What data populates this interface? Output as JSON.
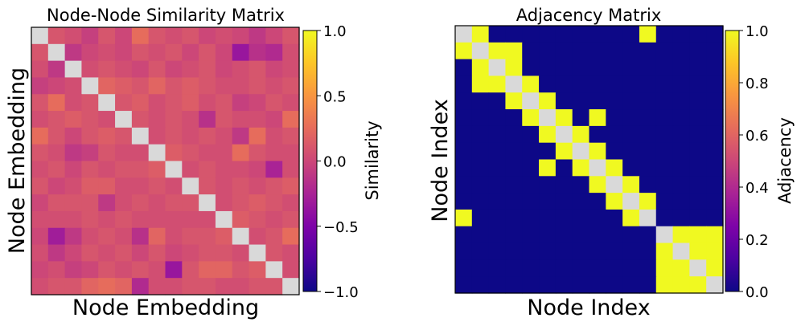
{
  "chart_data": [
    {
      "type": "heatmap",
      "title": "Node-Node Similarity Matrix",
      "xlabel": "Node Embedding",
      "ylabel": "Node Embedding",
      "colormap": "plasma",
      "vmin": -1.0,
      "vmax": 1.0,
      "colorbar_label": "Similarity",
      "colorbar_ticks": [
        -1.0,
        -0.5,
        0.0,
        0.5,
        1.0
      ],
      "colorbar_tick_labels": [
        "−1.0",
        "−0.5",
        "0.0",
        "0.5",
        "1.0"
      ],
      "diagonal_masked": true,
      "mask_color": "#d9d9d9",
      "size": 16,
      "values": [
        [
          null,
          0.1,
          0.05,
          -0.05,
          0.1,
          0.0,
          0.25,
          0.1,
          0.05,
          0.1,
          0.0,
          0.05,
          0.0,
          -0.1,
          0.0,
          0.1
        ],
        [
          0.1,
          null,
          -0.1,
          0.0,
          0.05,
          0.0,
          0.1,
          0.05,
          0.1,
          0.0,
          0.1,
          0.0,
          -0.35,
          -0.15,
          -0.2,
          0.05
        ],
        [
          0.05,
          -0.1,
          null,
          0.05,
          0.1,
          0.05,
          0.0,
          0.1,
          0.0,
          0.05,
          0.1,
          0.0,
          0.05,
          0.1,
          0.0,
          0.05
        ],
        [
          -0.05,
          0.0,
          0.05,
          null,
          0.2,
          0.15,
          0.1,
          0.2,
          0.1,
          0.15,
          0.1,
          0.05,
          0.05,
          0.1,
          0.05,
          0.1
        ],
        [
          0.1,
          0.25,
          0.05,
          0.1,
          null,
          0.1,
          0.15,
          0.05,
          0.1,
          0.15,
          0.05,
          0.1,
          -0.05,
          0.0,
          0.1,
          0.05
        ],
        [
          0.05,
          0.1,
          0.15,
          0.1,
          0.05,
          null,
          0.1,
          0.05,
          0.1,
          0.05,
          -0.15,
          0.1,
          0.05,
          0.05,
          0.0,
          0.25
        ],
        [
          0.25,
          0.1,
          0.0,
          0.1,
          0.15,
          0.1,
          null,
          0.05,
          0.1,
          0.05,
          0.1,
          0.05,
          -0.1,
          0.25,
          0.05,
          0.1
        ],
        [
          0.1,
          0.05,
          -0.1,
          -0.05,
          0.1,
          0.05,
          0.05,
          null,
          0.15,
          0.1,
          0.05,
          0.05,
          0.25,
          0.1,
          0.05,
          0.05
        ],
        [
          0.05,
          0.1,
          0.0,
          0.1,
          0.05,
          0.1,
          0.1,
          0.15,
          null,
          0.05,
          0.1,
          0.05,
          0.05,
          0.0,
          -0.25,
          0.05
        ],
        [
          0.1,
          0.0,
          0.05,
          0.15,
          0.15,
          0.05,
          0.05,
          0.1,
          0.05,
          null,
          0.1,
          0.05,
          0.1,
          0.05,
          0.1,
          0.15
        ],
        [
          0.0,
          0.1,
          0.1,
          0.1,
          -0.1,
          0.05,
          0.1,
          0.05,
          0.1,
          0.1,
          null,
          0.05,
          0.1,
          0.15,
          0.1,
          0.05
        ],
        [
          0.05,
          0.05,
          0.05,
          0.1,
          0.05,
          0.1,
          0.05,
          0.05,
          0.05,
          0.05,
          0.05,
          null,
          0.15,
          0.1,
          0.05,
          0.1
        ],
        [
          0.0,
          -0.3,
          -0.1,
          0.05,
          0.1,
          0.05,
          -0.15,
          0.2,
          0.05,
          0.1,
          0.1,
          0.15,
          null,
          0.05,
          0.1,
          0.25
        ],
        [
          0.05,
          -0.1,
          0.0,
          0.1,
          0.05,
          0.1,
          0.0,
          0.1,
          0.0,
          0.05,
          0.1,
          0.1,
          0.05,
          null,
          0.1,
          0.05
        ],
        [
          0.0,
          0.05,
          -0.05,
          0.0,
          0.1,
          0.05,
          0.1,
          0.05,
          -0.35,
          0.1,
          0.2,
          0.2,
          0.1,
          0.15,
          null,
          0.05
        ],
        [
          0.05,
          0.1,
          0.1,
          0.2,
          0.25,
          0.2,
          -0.2,
          0.05,
          0.05,
          0.1,
          0.1,
          0.05,
          0.05,
          0.1,
          0.1,
          null
        ]
      ]
    },
    {
      "type": "heatmap",
      "title": "Adjacency Matrix",
      "xlabel": "Node Index",
      "ylabel": "Node Index",
      "colormap": "plasma",
      "vmin": 0.0,
      "vmax": 1.0,
      "colorbar_label": "Adjacency",
      "colorbar_ticks": [
        0.0,
        0.2,
        0.4,
        0.6,
        0.8,
        1.0
      ],
      "colorbar_tick_labels": [
        "0.0",
        "0.2",
        "0.4",
        "0.6",
        "0.8",
        "1.0"
      ],
      "diagonal_masked": true,
      "mask_color": "#d9d9d9",
      "size": 16,
      "values": [
        [
          null,
          1,
          0,
          0,
          0,
          0,
          0,
          0,
          0,
          0,
          0,
          1,
          0,
          0,
          0,
          0
        ],
        [
          1,
          null,
          1,
          1,
          0,
          0,
          0,
          0,
          0,
          0,
          0,
          0,
          0,
          0,
          0,
          0
        ],
        [
          0,
          1,
          null,
          1,
          0,
          0,
          0,
          0,
          0,
          0,
          0,
          0,
          0,
          0,
          0,
          0
        ],
        [
          0,
          1,
          1,
          null,
          1,
          0,
          0,
          0,
          0,
          0,
          0,
          0,
          0,
          0,
          0,
          0
        ],
        [
          0,
          0,
          0,
          1,
          null,
          1,
          0,
          0,
          0,
          0,
          0,
          0,
          0,
          0,
          0,
          0
        ],
        [
          0,
          0,
          0,
          0,
          1,
          null,
          1,
          0,
          1,
          0,
          0,
          0,
          0,
          0,
          0,
          0
        ],
        [
          0,
          0,
          0,
          0,
          0,
          1,
          null,
          1,
          0,
          0,
          0,
          0,
          0,
          0,
          0,
          0
        ],
        [
          0,
          0,
          0,
          0,
          0,
          0,
          1,
          null,
          1,
          0,
          0,
          0,
          0,
          0,
          0,
          0
        ],
        [
          0,
          0,
          0,
          0,
          0,
          1,
          0,
          1,
          null,
          1,
          0,
          0,
          0,
          0,
          0,
          0
        ],
        [
          0,
          0,
          0,
          0,
          0,
          0,
          0,
          0,
          1,
          null,
          1,
          0,
          0,
          0,
          0,
          0
        ],
        [
          0,
          0,
          0,
          0,
          0,
          0,
          0,
          0,
          0,
          1,
          null,
          1,
          0,
          0,
          0,
          0
        ],
        [
          1,
          0,
          0,
          0,
          0,
          0,
          0,
          0,
          0,
          0,
          1,
          null,
          0,
          0,
          0,
          0
        ],
        [
          0,
          0,
          0,
          0,
          0,
          0,
          0,
          0,
          0,
          0,
          0,
          0,
          null,
          1,
          1,
          1
        ],
        [
          0,
          0,
          0,
          0,
          0,
          0,
          0,
          0,
          0,
          0,
          0,
          0,
          1,
          null,
          1,
          1
        ],
        [
          0,
          0,
          0,
          0,
          0,
          0,
          0,
          0,
          0,
          0,
          0,
          0,
          1,
          1,
          null,
          1
        ],
        [
          0,
          0,
          0,
          0,
          0,
          0,
          0,
          0,
          0,
          0,
          0,
          0,
          1,
          1,
          1,
          null
        ]
      ]
    }
  ]
}
